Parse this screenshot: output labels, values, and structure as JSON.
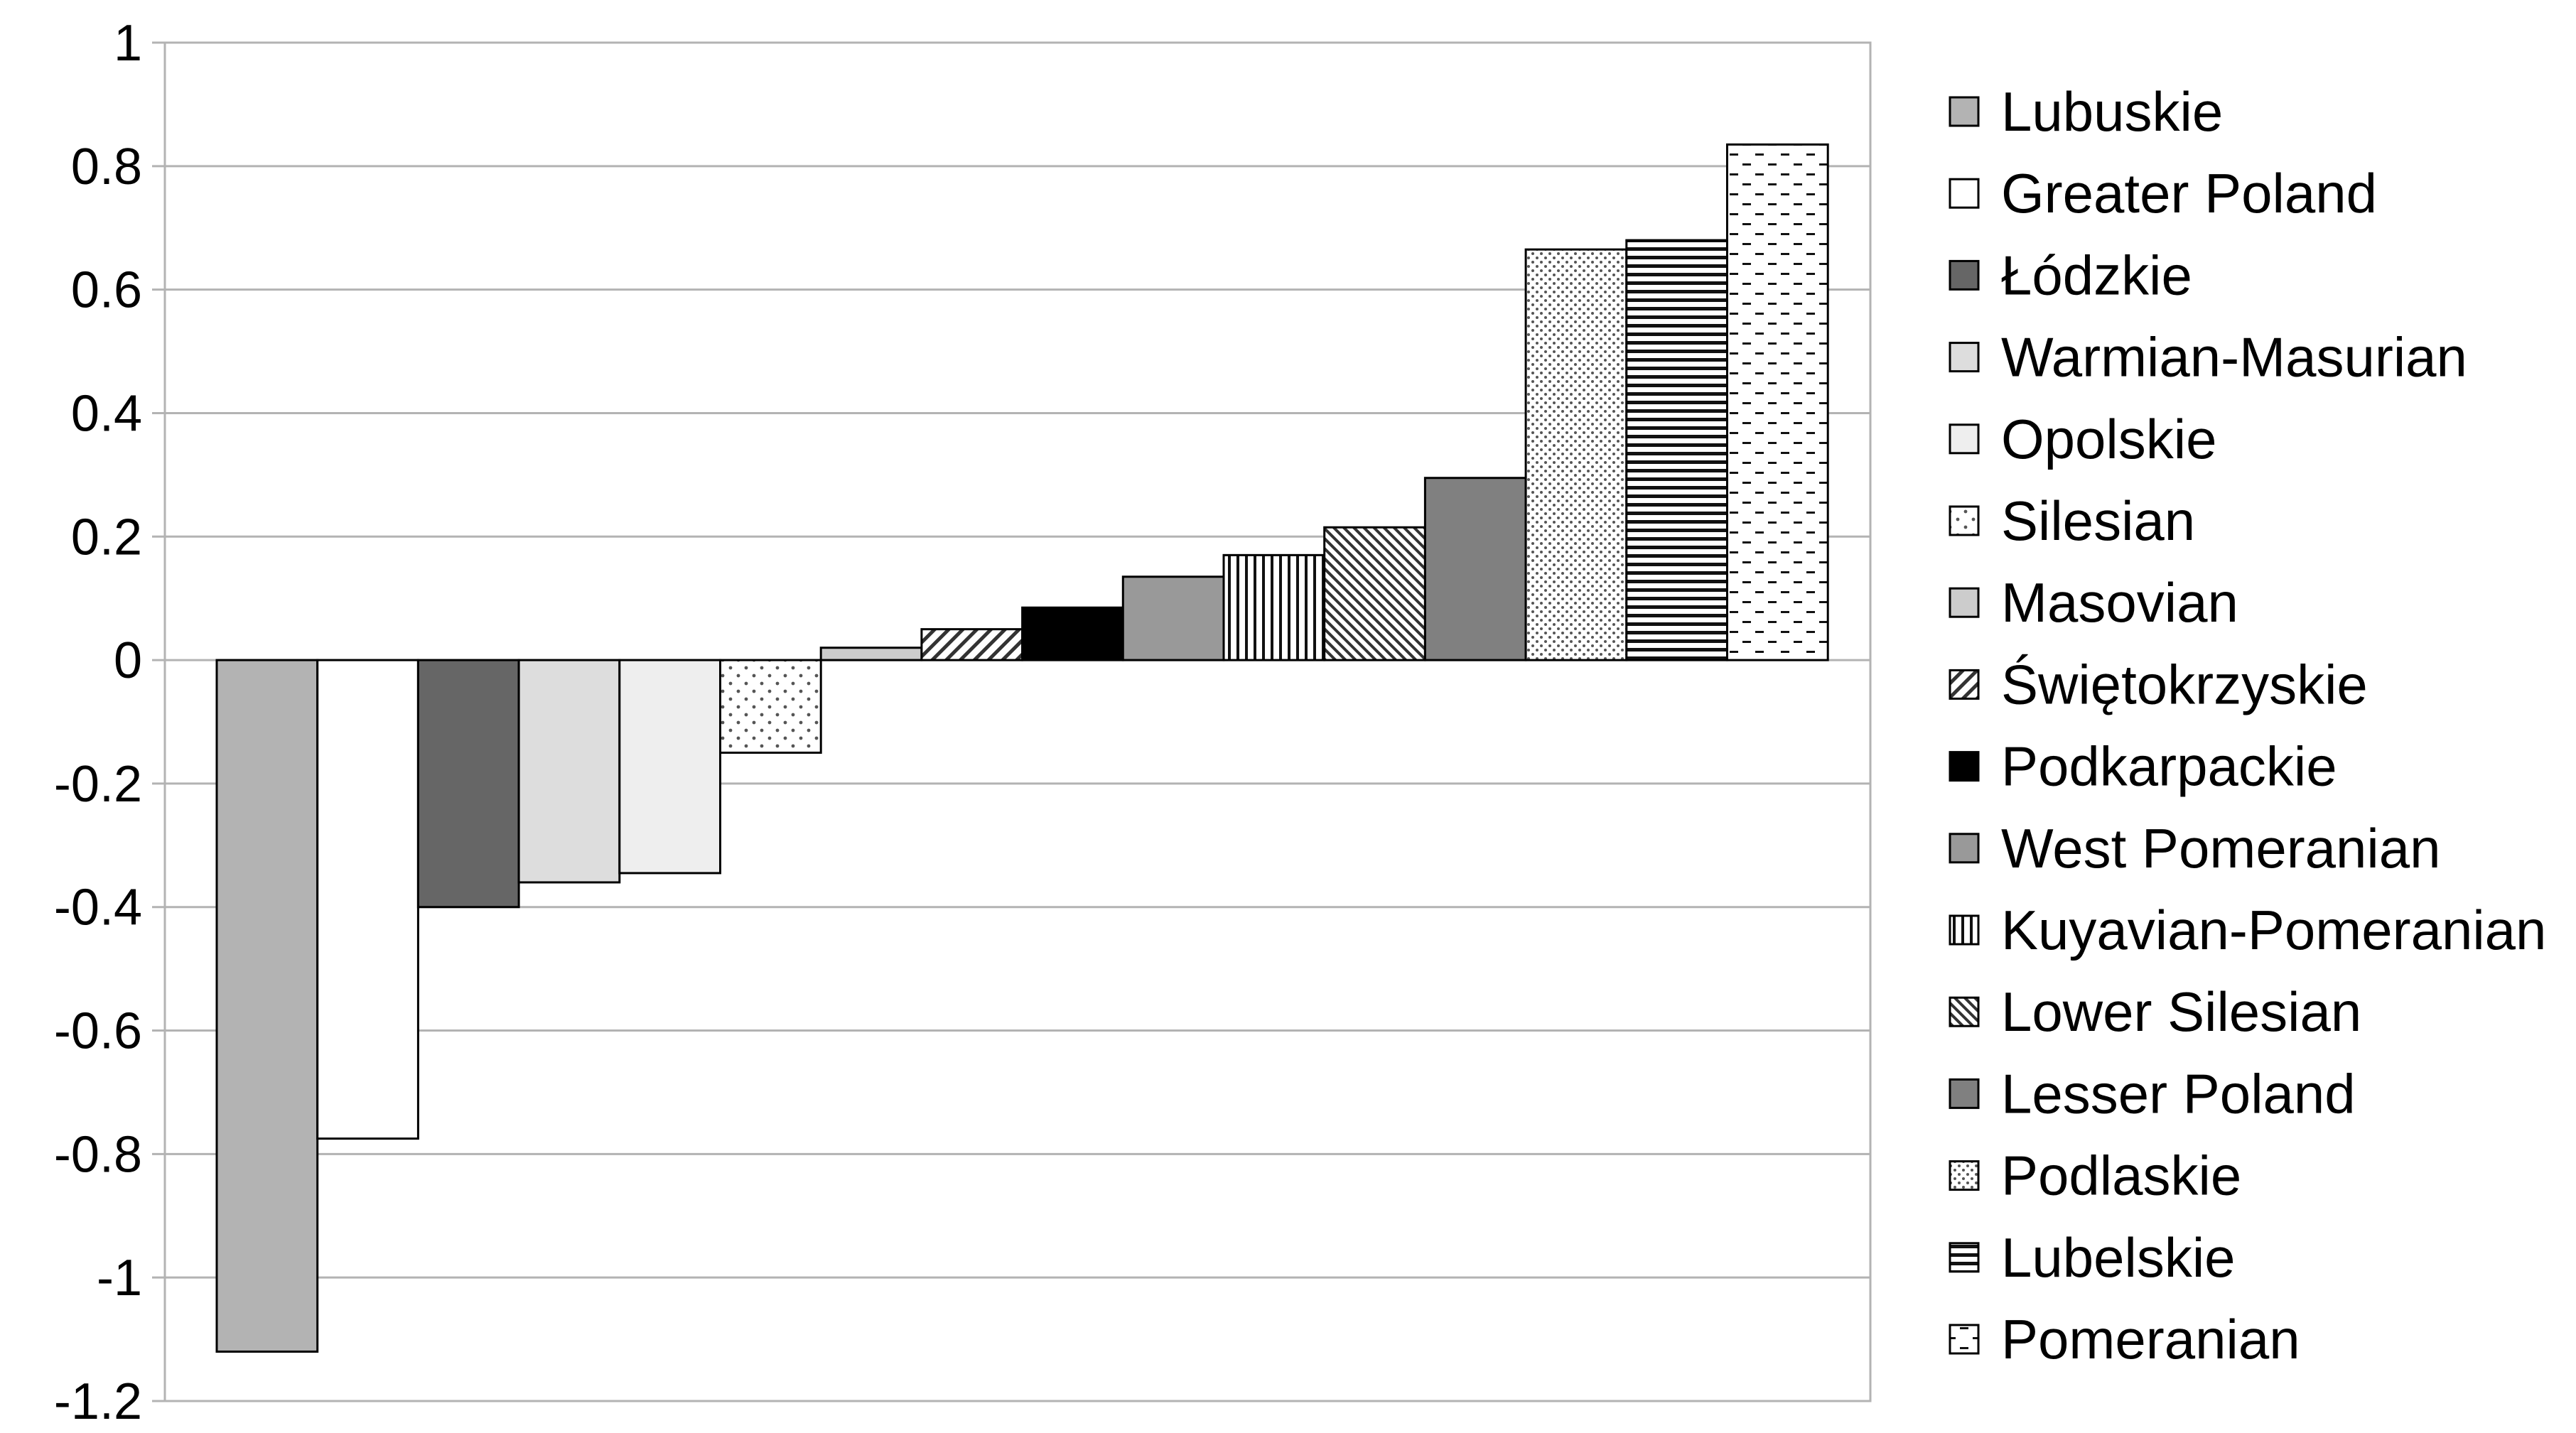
{
  "chart_data": {
    "type": "bar",
    "title": "",
    "xlabel": "",
    "ylabel": "",
    "ylim": [
      -1.2,
      1
    ],
    "yticks": [
      1,
      0.8,
      0.6,
      0.4,
      0.2,
      0,
      -0.2,
      -0.4,
      -0.6,
      -0.8,
      -1,
      -1.2
    ],
    "grid": "horizontal",
    "legend_position": "right",
    "series": [
      {
        "name": "Lubuskie",
        "value": -1.12,
        "fill": "#b3b3b3",
        "pattern": "solid"
      },
      {
        "name": "Greater Poland",
        "value": -0.775,
        "fill": "#ffffff",
        "pattern": "solid"
      },
      {
        "name": "Łódzkie",
        "value": -0.4,
        "fill": "#666666",
        "pattern": "solid"
      },
      {
        "name": "Warmian-Masurian",
        "value": -0.36,
        "fill": "#dddddd",
        "pattern": "solid"
      },
      {
        "name": "Opolskie",
        "value": -0.345,
        "fill": "#eeeeee",
        "pattern": "solid"
      },
      {
        "name": "Silesian",
        "value": -0.15,
        "fill": "#ffffff",
        "pattern": "dots-sparse"
      },
      {
        "name": "Masovian",
        "value": 0.02,
        "fill": "#cccccc",
        "pattern": "solid"
      },
      {
        "name": "Świętokrzyskie",
        "value": 0.05,
        "fill": "#ffffff",
        "pattern": "diagonal"
      },
      {
        "name": "Podkarpackie",
        "value": 0.085,
        "fill": "#000000",
        "pattern": "solid"
      },
      {
        "name": "West Pomeranian",
        "value": 0.135,
        "fill": "#999999",
        "pattern": "solid"
      },
      {
        "name": "Kuyavian-Pomeranian",
        "value": 0.17,
        "fill": "#ffffff",
        "pattern": "vertical"
      },
      {
        "name": "Lower Silesian",
        "value": 0.215,
        "fill": "#ffffff",
        "pattern": "diagonal-dense"
      },
      {
        "name": "Lesser Poland",
        "value": 0.295,
        "fill": "#808080",
        "pattern": "solid"
      },
      {
        "name": "Podlaskie",
        "value": 0.665,
        "fill": "#ffffff",
        "pattern": "dots-dense"
      },
      {
        "name": "Lubelskie",
        "value": 0.68,
        "fill": "#ffffff",
        "pattern": "horizontal"
      },
      {
        "name": "Pomeranian",
        "value": 0.835,
        "fill": "#ffffff",
        "pattern": "dashes"
      }
    ]
  }
}
